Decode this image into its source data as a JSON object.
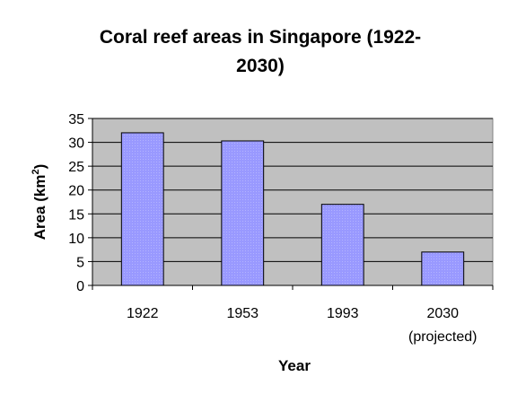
{
  "chart_data": {
    "type": "bar",
    "title_lines": [
      "Coral reef areas in Singapore (1922-",
      "2030)"
    ],
    "categories": [
      "1922",
      "1953",
      "1993",
      "2030"
    ],
    "category_sublabels": [
      "",
      "",
      "",
      "(projected)"
    ],
    "values": [
      32,
      30.3,
      17,
      7
    ],
    "xlabel": "Year",
    "ylabel": "Area (km2)",
    "ylabel_parts": {
      "main": "Area (km",
      "superscript": "2",
      "close": ")"
    },
    "ylim": [
      0,
      35
    ],
    "yticks": [
      0,
      5,
      10,
      15,
      20,
      25,
      30,
      35
    ],
    "grid": true,
    "colors": {
      "bar_fill": "#9999ff",
      "bar_stroke": "#000000",
      "plot_bg": "#c0c0c0",
      "grid": "#000000"
    }
  }
}
